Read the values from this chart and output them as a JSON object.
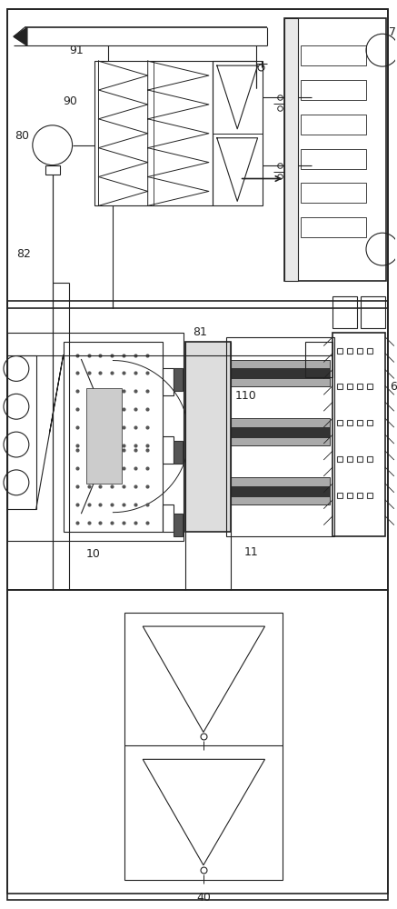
{
  "bg_color": "#ffffff",
  "lc": "#222222",
  "lw": 0.8,
  "lw2": 1.2,
  "figsize": [
    4.37,
    10.0
  ],
  "dpi": 100
}
